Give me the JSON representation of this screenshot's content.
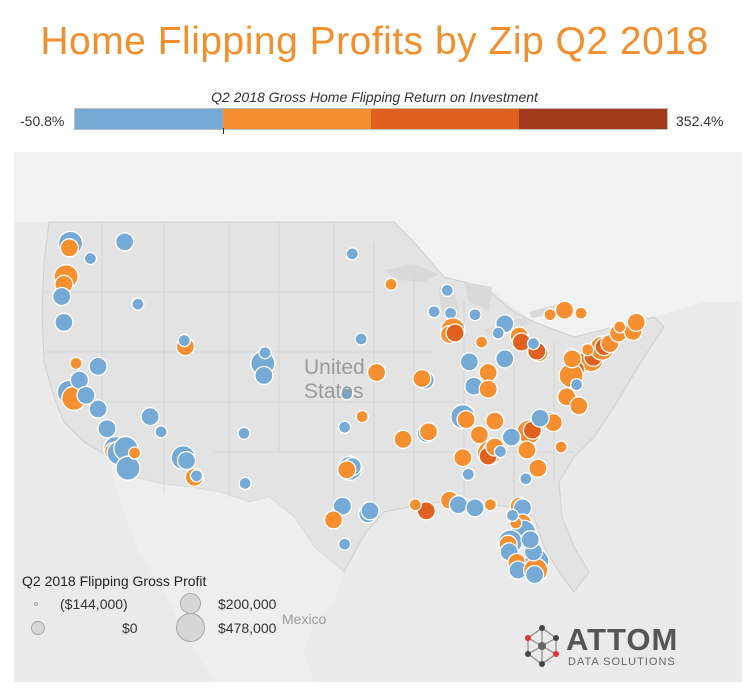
{
  "title": "Home Flipping Profits by Zip Q2 2018",
  "color_legend": {
    "title": "Q2 2018 Gross Home Flipping Return on Investment",
    "min_label": "-50.8%",
    "max_label": "352.4%",
    "segments": [
      {
        "color": "#76aad6",
        "share": 0.25
      },
      {
        "color": "#f58f30",
        "share": 0.25
      },
      {
        "color": "#e0611f",
        "share": 0.25
      },
      {
        "color": "#a33a1c",
        "share": 0.25
      }
    ]
  },
  "map": {
    "labels": {
      "usa_line1": "United",
      "usa_line2": "States",
      "mexico": "Mexico"
    },
    "colors": {
      "blue": "#76aad6",
      "orange": "#f58f30",
      "dark_orange": "#e0611f",
      "brown": "#a33a1c"
    },
    "clusters": [
      {
        "c": "blue",
        "x": -122.3,
        "y": 47.6,
        "s": 3
      },
      {
        "c": "orange",
        "x": -122.4,
        "y": 47.3,
        "s": 2
      },
      {
        "c": "blue",
        "x": -122.6,
        "y": 45.6,
        "s": 2
      },
      {
        "c": "orange",
        "x": -122.7,
        "y": 45.4,
        "s": 3
      },
      {
        "c": "orange",
        "x": -122.9,
        "y": 44.9,
        "s": 2
      },
      {
        "c": "blue",
        "x": -123.1,
        "y": 44.1,
        "s": 2
      },
      {
        "c": "blue",
        "x": -120.5,
        "y": 46.6,
        "s": 1
      },
      {
        "c": "blue",
        "x": -117.4,
        "y": 47.7,
        "s": 2
      },
      {
        "c": "blue",
        "x": -116.2,
        "y": 43.6,
        "s": 1
      },
      {
        "c": "blue",
        "x": -122.9,
        "y": 42.4,
        "s": 2
      },
      {
        "c": "orange",
        "x": -111.9,
        "y": 40.8,
        "s": 2
      },
      {
        "c": "blue",
        "x": -112.0,
        "y": 41.2,
        "s": 1
      },
      {
        "c": "blue",
        "x": -104.9,
        "y": 39.7,
        "s": 3
      },
      {
        "c": "blue",
        "x": -104.8,
        "y": 38.9,
        "s": 2
      },
      {
        "c": "blue",
        "x": -104.7,
        "y": 40.4,
        "s": 1
      },
      {
        "c": "blue",
        "x": -122.4,
        "y": 37.8,
        "s": 3
      },
      {
        "c": "orange",
        "x": -122.0,
        "y": 37.4,
        "s": 3
      },
      {
        "c": "blue",
        "x": -121.5,
        "y": 38.6,
        "s": 2
      },
      {
        "c": "orange",
        "x": -121.8,
        "y": 39.7,
        "s": 1
      },
      {
        "c": "blue",
        "x": -119.8,
        "y": 39.5,
        "s": 2
      },
      {
        "c": "blue",
        "x": -120.9,
        "y": 37.6,
        "s": 2
      },
      {
        "c": "blue",
        "x": -119.8,
        "y": 36.7,
        "s": 2
      },
      {
        "c": "blue",
        "x": -119.0,
        "y": 35.4,
        "s": 2
      },
      {
        "c": "blue",
        "x": -118.2,
        "y": 34.1,
        "s": 3
      },
      {
        "c": "orange",
        "x": -118.4,
        "y": 33.9,
        "s": 2
      },
      {
        "c": "blue",
        "x": -117.9,
        "y": 33.8,
        "s": 3
      },
      {
        "c": "blue",
        "x": -117.3,
        "y": 34.1,
        "s": 3
      },
      {
        "c": "blue",
        "x": -117.1,
        "y": 32.8,
        "s": 3
      },
      {
        "c": "orange",
        "x": -116.5,
        "y": 33.8,
        "s": 1
      },
      {
        "c": "blue",
        "x": -115.1,
        "y": 36.2,
        "s": 2
      },
      {
        "c": "blue",
        "x": -114.1,
        "y": 35.2,
        "s": 1
      },
      {
        "c": "blue",
        "x": -112.1,
        "y": 33.5,
        "s": 3
      },
      {
        "c": "blue",
        "x": -111.8,
        "y": 33.3,
        "s": 2
      },
      {
        "c": "orange",
        "x": -111.1,
        "y": 32.2,
        "s": 2
      },
      {
        "c": "blue",
        "x": -110.9,
        "y": 32.3,
        "s": 1
      },
      {
        "c": "blue",
        "x": -106.6,
        "y": 35.1,
        "s": 1
      },
      {
        "c": "blue",
        "x": -106.5,
        "y": 31.8,
        "s": 1
      },
      {
        "c": "blue",
        "x": -97.3,
        "y": 37.7,
        "s": 1
      },
      {
        "c": "blue",
        "x": -96.0,
        "y": 41.3,
        "s": 1
      },
      {
        "c": "orange",
        "x": -94.6,
        "y": 39.1,
        "s": 2
      },
      {
        "c": "orange",
        "x": -93.3,
        "y": 44.9,
        "s": 1
      },
      {
        "c": "blue",
        "x": -96.8,
        "y": 46.9,
        "s": 1
      },
      {
        "c": "blue",
        "x": -90.2,
        "y": 38.6,
        "s": 2
      },
      {
        "c": "orange",
        "x": -90.5,
        "y": 38.7,
        "s": 2
      },
      {
        "c": "blue",
        "x": -97.5,
        "y": 35.5,
        "s": 1
      },
      {
        "c": "orange",
        "x": -95.9,
        "y": 36.2,
        "s": 1
      },
      {
        "c": "blue",
        "x": -97.0,
        "y": 32.8,
        "s": 3
      },
      {
        "c": "blue",
        "x": -96.8,
        "y": 32.9,
        "s": 2
      },
      {
        "c": "orange",
        "x": -97.3,
        "y": 32.7,
        "s": 2
      },
      {
        "c": "blue",
        "x": -97.7,
        "y": 30.3,
        "s": 2
      },
      {
        "c": "orange",
        "x": -98.5,
        "y": 29.4,
        "s": 2
      },
      {
        "c": "blue",
        "x": -95.4,
        "y": 29.8,
        "s": 2
      },
      {
        "c": "blue",
        "x": -95.2,
        "y": 30.0,
        "s": 2
      },
      {
        "c": "blue",
        "x": -97.5,
        "y": 27.8,
        "s": 1
      },
      {
        "c": "orange",
        "x": -92.2,
        "y": 34.7,
        "s": 2
      },
      {
        "c": "blue",
        "x": -90.1,
        "y": 35.1,
        "s": 2
      },
      {
        "c": "orange",
        "x": -89.9,
        "y": 35.2,
        "s": 2
      },
      {
        "c": "blue",
        "x": -87.9,
        "y": 43.0,
        "s": 1
      },
      {
        "c": "orange",
        "x": -87.7,
        "y": 41.9,
        "s": 3
      },
      {
        "c": "orange",
        "x": -88.0,
        "y": 41.6,
        "s": 2
      },
      {
        "c": "dark_orange",
        "x": -87.5,
        "y": 41.7,
        "s": 2
      },
      {
        "c": "blue",
        "x": -89.4,
        "y": 43.1,
        "s": 1
      },
      {
        "c": "blue",
        "x": -88.2,
        "y": 44.5,
        "s": 1
      },
      {
        "c": "blue",
        "x": -86.2,
        "y": 39.8,
        "s": 2
      },
      {
        "c": "orange",
        "x": -85.1,
        "y": 41.1,
        "s": 1
      },
      {
        "c": "orange",
        "x": -84.5,
        "y": 39.1,
        "s": 2
      },
      {
        "c": "blue",
        "x": -83.0,
        "y": 40.0,
        "s": 2
      },
      {
        "c": "orange",
        "x": -81.7,
        "y": 41.5,
        "s": 2
      },
      {
        "c": "dark_orange",
        "x": -81.5,
        "y": 41.1,
        "s": 2
      },
      {
        "c": "blue",
        "x": -83.0,
        "y": 42.3,
        "s": 2
      },
      {
        "c": "blue",
        "x": -83.6,
        "y": 41.7,
        "s": 1
      },
      {
        "c": "blue",
        "x": -85.7,
        "y": 42.9,
        "s": 1
      },
      {
        "c": "orange",
        "x": -79.9,
        "y": 40.4,
        "s": 2
      },
      {
        "c": "dark_orange",
        "x": -80.1,
        "y": 40.5,
        "s": 2
      },
      {
        "c": "blue",
        "x": -80.4,
        "y": 41.0,
        "s": 1
      },
      {
        "c": "orange",
        "x": -78.9,
        "y": 42.9,
        "s": 1
      },
      {
        "c": "orange",
        "x": -77.6,
        "y": 43.2,
        "s": 2
      },
      {
        "c": "orange",
        "x": -76.1,
        "y": 43.0,
        "s": 1
      },
      {
        "c": "orange",
        "x": -75.2,
        "y": 39.95,
        "s": 3
      },
      {
        "c": "dark_orange",
        "x": -75.0,
        "y": 40.1,
        "s": 2
      },
      {
        "c": "orange",
        "x": -74.2,
        "y": 40.7,
        "s": 3
      },
      {
        "c": "dark_orange",
        "x": -74.0,
        "y": 40.8,
        "s": 2
      },
      {
        "c": "orange",
        "x": -73.5,
        "y": 41.0,
        "s": 2
      },
      {
        "c": "orange",
        "x": -72.7,
        "y": 41.7,
        "s": 2
      },
      {
        "c": "orange",
        "x": -71.4,
        "y": 41.8,
        "s": 2
      },
      {
        "c": "orange",
        "x": -71.1,
        "y": 42.4,
        "s": 2
      },
      {
        "c": "orange",
        "x": -72.6,
        "y": 42.1,
        "s": 1
      },
      {
        "c": "dark_orange",
        "x": -76.6,
        "y": 39.3,
        "s": 2
      },
      {
        "c": "orange",
        "x": -77.0,
        "y": 38.9,
        "s": 3
      },
      {
        "c": "orange",
        "x": -77.4,
        "y": 37.5,
        "s": 2
      },
      {
        "c": "orange",
        "x": -76.3,
        "y": 36.9,
        "s": 2
      },
      {
        "c": "blue",
        "x": -76.5,
        "y": 38.3,
        "s": 1
      },
      {
        "c": "orange",
        "x": -75.5,
        "y": 40.6,
        "s": 1
      },
      {
        "c": "blue",
        "x": -77.0,
        "y": 40.3,
        "s": 1
      },
      {
        "c": "orange",
        "x": -76.9,
        "y": 40.0,
        "s": 2
      },
      {
        "c": "blue",
        "x": -78.9,
        "y": 35.9,
        "s": 2
      },
      {
        "c": "orange",
        "x": -78.6,
        "y": 35.8,
        "s": 2
      },
      {
        "c": "orange",
        "x": -80.8,
        "y": 35.2,
        "s": 3
      },
      {
        "c": "dark_orange",
        "x": -80.5,
        "y": 35.3,
        "s": 2
      },
      {
        "c": "blue",
        "x": -79.8,
        "y": 36.1,
        "s": 2
      },
      {
        "c": "orange",
        "x": -81.0,
        "y": 34.0,
        "s": 2
      },
      {
        "c": "blue",
        "x": -82.4,
        "y": 34.85,
        "s": 2
      },
      {
        "c": "orange",
        "x": -80.0,
        "y": 32.8,
        "s": 2
      },
      {
        "c": "blue",
        "x": -81.1,
        "y": 32.1,
        "s": 1
      },
      {
        "c": "orange",
        "x": -77.9,
        "y": 34.2,
        "s": 1
      },
      {
        "c": "orange",
        "x": -84.4,
        "y": 33.8,
        "s": 3
      },
      {
        "c": "blue",
        "x": -84.2,
        "y": 33.9,
        "s": 2
      },
      {
        "c": "dark_orange",
        "x": -84.5,
        "y": 33.6,
        "s": 2
      },
      {
        "c": "orange",
        "x": -83.9,
        "y": 34.2,
        "s": 2
      },
      {
        "c": "blue",
        "x": -83.4,
        "y": 33.9,
        "s": 1
      },
      {
        "c": "orange",
        "x": -85.3,
        "y": 35.0,
        "s": 2
      },
      {
        "c": "blue",
        "x": -86.8,
        "y": 36.2,
        "s": 3
      },
      {
        "c": "orange",
        "x": -86.5,
        "y": 36.0,
        "s": 2
      },
      {
        "c": "orange",
        "x": -83.9,
        "y": 35.9,
        "s": 2
      },
      {
        "c": "blue",
        "x": -85.8,
        "y": 38.2,
        "s": 2
      },
      {
        "c": "orange",
        "x": -84.5,
        "y": 38.0,
        "s": 2
      },
      {
        "c": "orange",
        "x": -86.8,
        "y": 33.5,
        "s": 2
      },
      {
        "c": "blue",
        "x": -86.3,
        "y": 32.4,
        "s": 1
      },
      {
        "c": "dark_orange",
        "x": -90.1,
        "y": 30.0,
        "s": 2
      },
      {
        "c": "orange",
        "x": -91.1,
        "y": 30.4,
        "s": 1
      },
      {
        "c": "orange",
        "x": -88.0,
        "y": 30.7,
        "s": 2
      },
      {
        "c": "blue",
        "x": -87.2,
        "y": 30.4,
        "s": 2
      },
      {
        "c": "blue",
        "x": -85.7,
        "y": 30.2,
        "s": 2
      },
      {
        "c": "orange",
        "x": -84.3,
        "y": 30.4,
        "s": 1
      },
      {
        "c": "orange",
        "x": -81.7,
        "y": 30.3,
        "s": 2
      },
      {
        "c": "blue",
        "x": -81.4,
        "y": 30.2,
        "s": 2
      },
      {
        "c": "orange",
        "x": -81.4,
        "y": 29.2,
        "s": 2
      },
      {
        "c": "orange",
        "x": -81.4,
        "y": 28.5,
        "s": 3
      },
      {
        "c": "blue",
        "x": -81.3,
        "y": 28.6,
        "s": 3
      },
      {
        "c": "blue",
        "x": -82.5,
        "y": 27.95,
        "s": 3
      },
      {
        "c": "orange",
        "x": -82.7,
        "y": 27.8,
        "s": 2
      },
      {
        "c": "blue",
        "x": -82.6,
        "y": 27.3,
        "s": 2
      },
      {
        "c": "orange",
        "x": -81.9,
        "y": 26.6,
        "s": 2
      },
      {
        "c": "blue",
        "x": -81.8,
        "y": 26.1,
        "s": 2
      },
      {
        "c": "blue",
        "x": -80.1,
        "y": 26.7,
        "s": 3
      },
      {
        "c": "orange",
        "x": -80.2,
        "y": 26.1,
        "s": 3
      },
      {
        "c": "blue",
        "x": -80.3,
        "y": 25.8,
        "s": 2
      },
      {
        "c": "blue",
        "x": -80.4,
        "y": 27.3,
        "s": 2
      },
      {
        "c": "orange",
        "x": -82.0,
        "y": 29.2,
        "s": 1
      },
      {
        "c": "blue",
        "x": -80.7,
        "y": 28.1,
        "s": 2
      },
      {
        "c": "blue",
        "x": -82.3,
        "y": 29.7,
        "s": 1
      }
    ]
  },
  "size_legend": {
    "title": "Q2 2018 Flipping Gross Profit",
    "items": [
      {
        "label": "($144,000)",
        "size": 4
      },
      {
        "label": "$0",
        "size": 14
      },
      {
        "label": "$200,000",
        "size": 21
      },
      {
        "label": "$478,000",
        "size": 29
      }
    ]
  },
  "logo": {
    "name": "ATTOM",
    "sub": "DATA SOLUTIONS",
    "icon": "attom-network-icon"
  }
}
